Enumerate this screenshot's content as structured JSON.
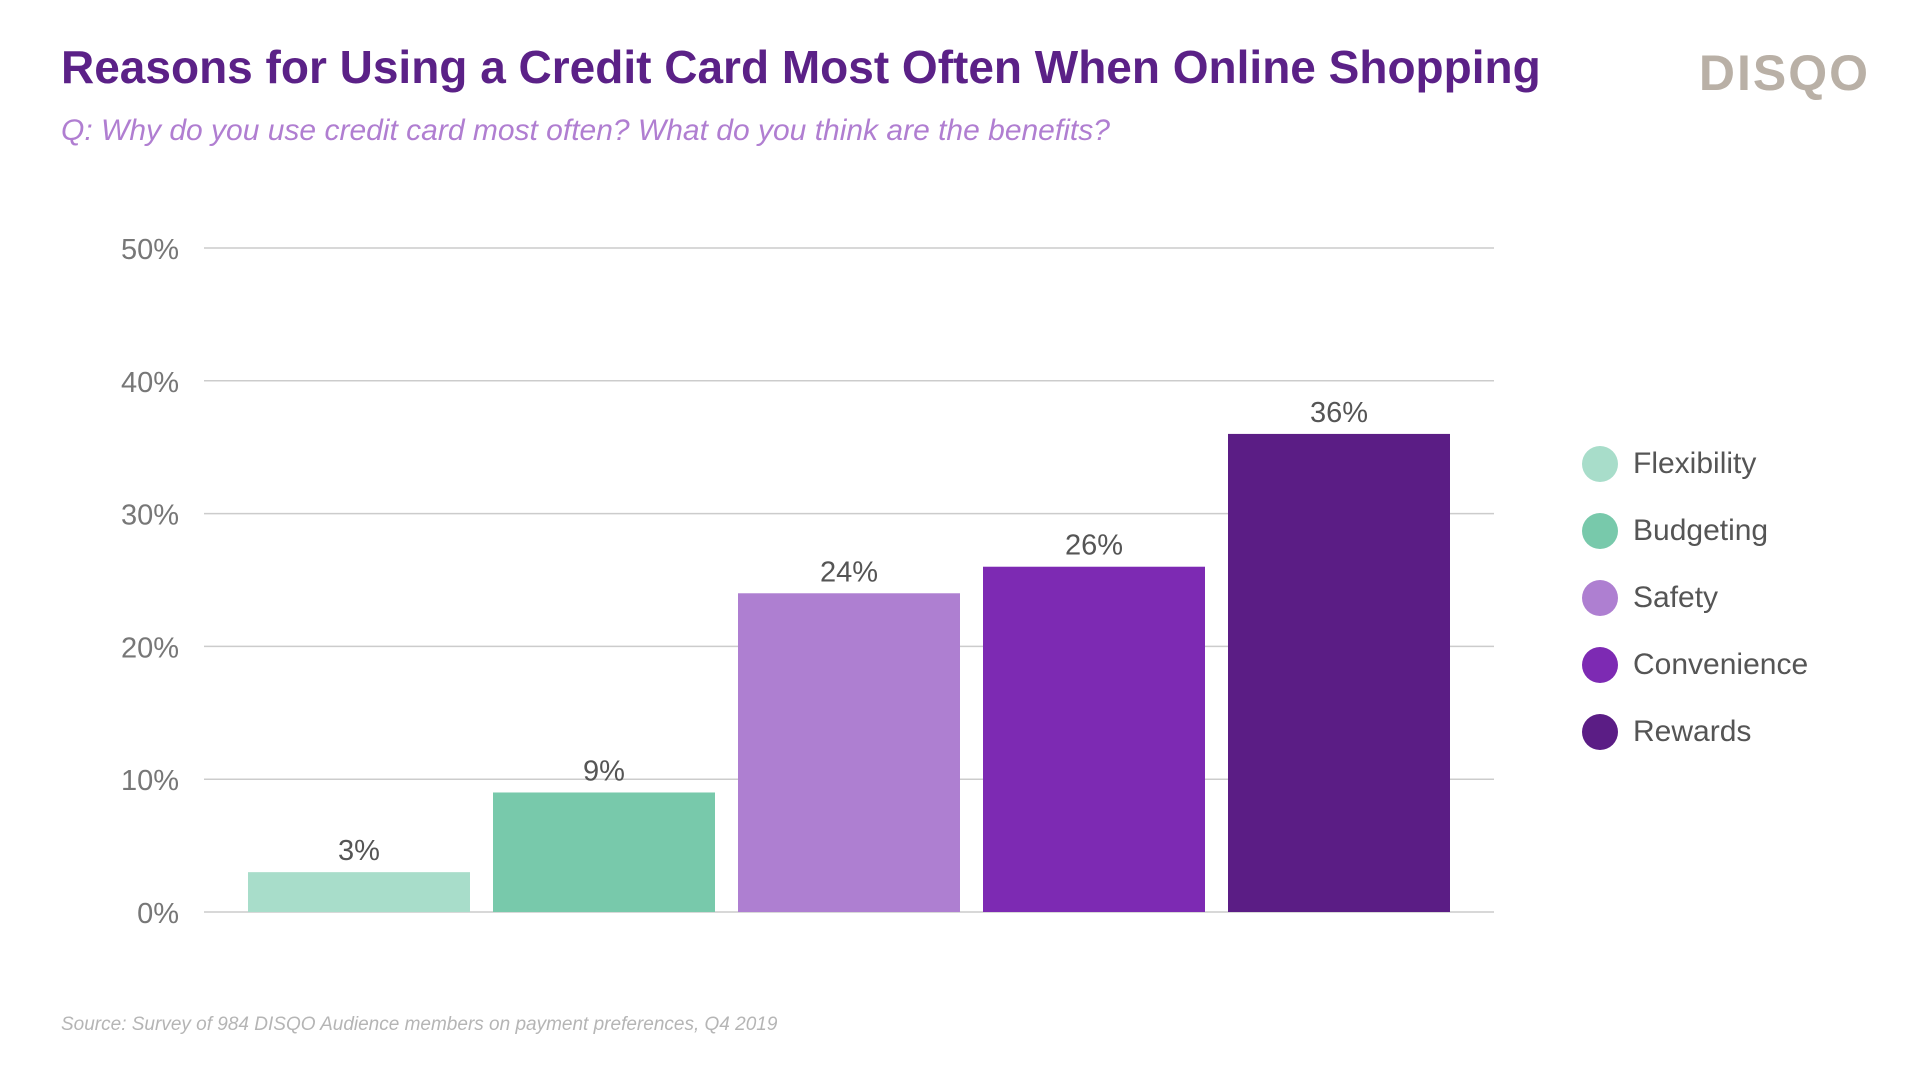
{
  "header": {
    "title": "Reasons for Using a Credit Card Most Often When Online Shopping",
    "subtitle": "Q: Why do you use credit card most often? What do you think are the benefits?",
    "logo": "DISQO"
  },
  "footer": {
    "source": "Source: Survey of 984 DISQO Audience members on payment preferences, Q4 2019"
  },
  "chart_data": {
    "type": "bar",
    "categories": [
      "Flexibility",
      "Budgeting",
      "Safety",
      "Convenience",
      "Rewards"
    ],
    "values": [
      3,
      9,
      24,
      26,
      36
    ],
    "data_labels": [
      "3%",
      "9%",
      "24%",
      "26%",
      "36%"
    ],
    "colors": [
      "#a8ddca",
      "#78c9ab",
      "#ae7fd1",
      "#7d2ab3",
      "#5b1d85"
    ],
    "ylim": [
      0,
      50
    ],
    "yticks": [
      0,
      10,
      20,
      30,
      40,
      50
    ],
    "ytick_labels": [
      "0%",
      "10%",
      "20%",
      "30%",
      "40%",
      "50%"
    ],
    "grid": true,
    "legend_position": "right"
  }
}
